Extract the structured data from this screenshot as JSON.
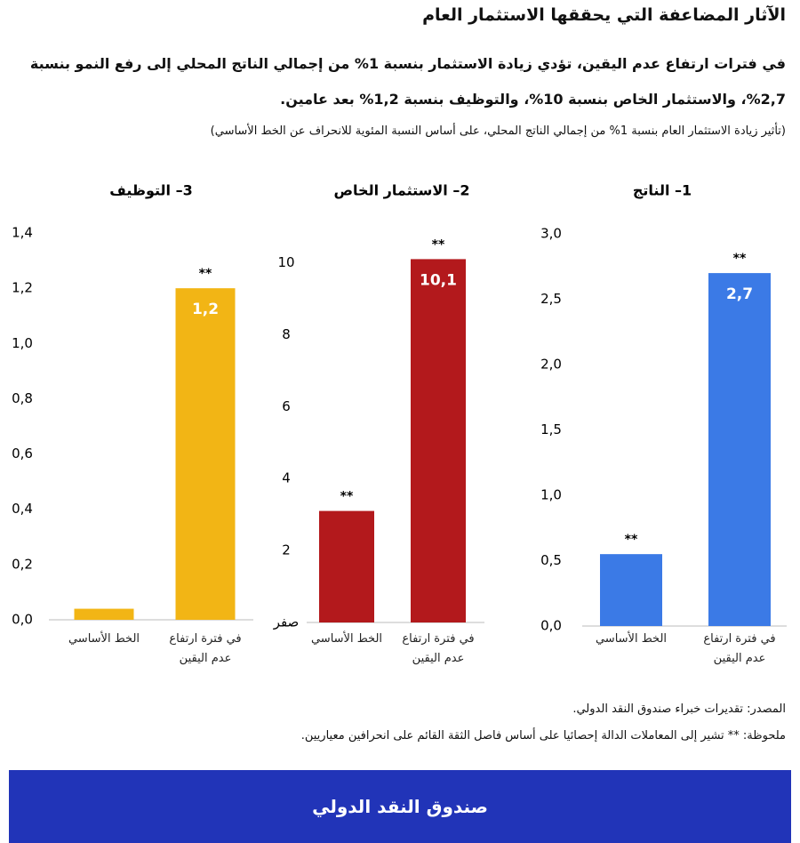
{
  "title": "الآثار المضاعفة التي يحققها الاستثمار العام",
  "subtitle": "في فترات ارتفاع عدم اليقين، تؤدي زيادة الاستثمار بنسبة 1% من إجمالي الناتج المحلي إلى رفع النمو بنسبة 2,7%، والاستثمار الخاص بنسبة 10%، والتوظيف بنسبة 1,2% بعد عامين.",
  "note_paren": "(تأثير زيادة الاستثمار العام بنسبة 1% من إجمالي الناتج المحلي، على أساس النسبة المئوية للانحراف عن الخط الأساسي)",
  "source": "المصدر: تقديرات خبراء صندوق النقد الدولي.",
  "note": "ملحوظة: ** تشير إلى المعاملات الدالة إحصائيا على أساس فاصل الثقة القائم على انحرافين معياريين.",
  "banner": "صندوق النقد الدولي",
  "chart_data": [
    {
      "type": "bar",
      "title": "1– الناتج",
      "categories": [
        "الخط الأساسي",
        "في فترة ارتفاع عدم اليقين"
      ],
      "values": [
        0.55,
        2.7
      ],
      "value_labels": [
        null,
        "2,7"
      ],
      "annotations": [
        "**",
        "**"
      ],
      "color": "#3b7ae6",
      "ylim": [
        0,
        3.0
      ],
      "yticks": [
        {
          "value": 0,
          "label": "0,0"
        },
        {
          "value": 0.5,
          "label": "0,5"
        },
        {
          "value": 1.0,
          "label": "1,0"
        },
        {
          "value": 1.5,
          "label": "1,5"
        },
        {
          "value": 2.0,
          "label": "2,0"
        },
        {
          "value": 2.5,
          "label": "2,5"
        },
        {
          "value": 3.0,
          "label": "3,0"
        }
      ]
    },
    {
      "type": "bar",
      "title": "2– الاستثمار الخاص",
      "categories": [
        "الخط الأساسي",
        "في فترة ارتفاع عدم اليقين"
      ],
      "values": [
        3.1,
        10.1
      ],
      "value_labels": [
        null,
        "10,1"
      ],
      "annotations": [
        "**",
        "**"
      ],
      "color": "#b3191c",
      "ylim": [
        0,
        11
      ],
      "yticks": [
        {
          "value": 0,
          "label": "صفر"
        },
        2,
        4,
        6,
        8,
        10
      ]
    },
    {
      "type": "bar",
      "title": "3– التوظيف",
      "categories": [
        "الخط الأساسي",
        "في فترة ارتفاع عدم اليقين"
      ],
      "values": [
        0.04,
        1.2
      ],
      "value_labels": [
        null,
        "1,2"
      ],
      "annotations": [
        null,
        "**"
      ],
      "color": "#f2b515",
      "ylim": [
        0,
        1.4
      ],
      "yticks": [
        {
          "value": 0,
          "label": "0,0"
        },
        {
          "value": 0.2,
          "label": "0,2"
        },
        {
          "value": 0.4,
          "label": "0,4"
        },
        {
          "value": 0.6,
          "label": "0,6"
        },
        {
          "value": 0.8,
          "label": "0,8"
        },
        {
          "value": 1.0,
          "label": "1,0"
        },
        {
          "value": 1.2,
          "label": "1,2"
        },
        {
          "value": 1.4,
          "label": "1,4"
        }
      ]
    }
  ]
}
